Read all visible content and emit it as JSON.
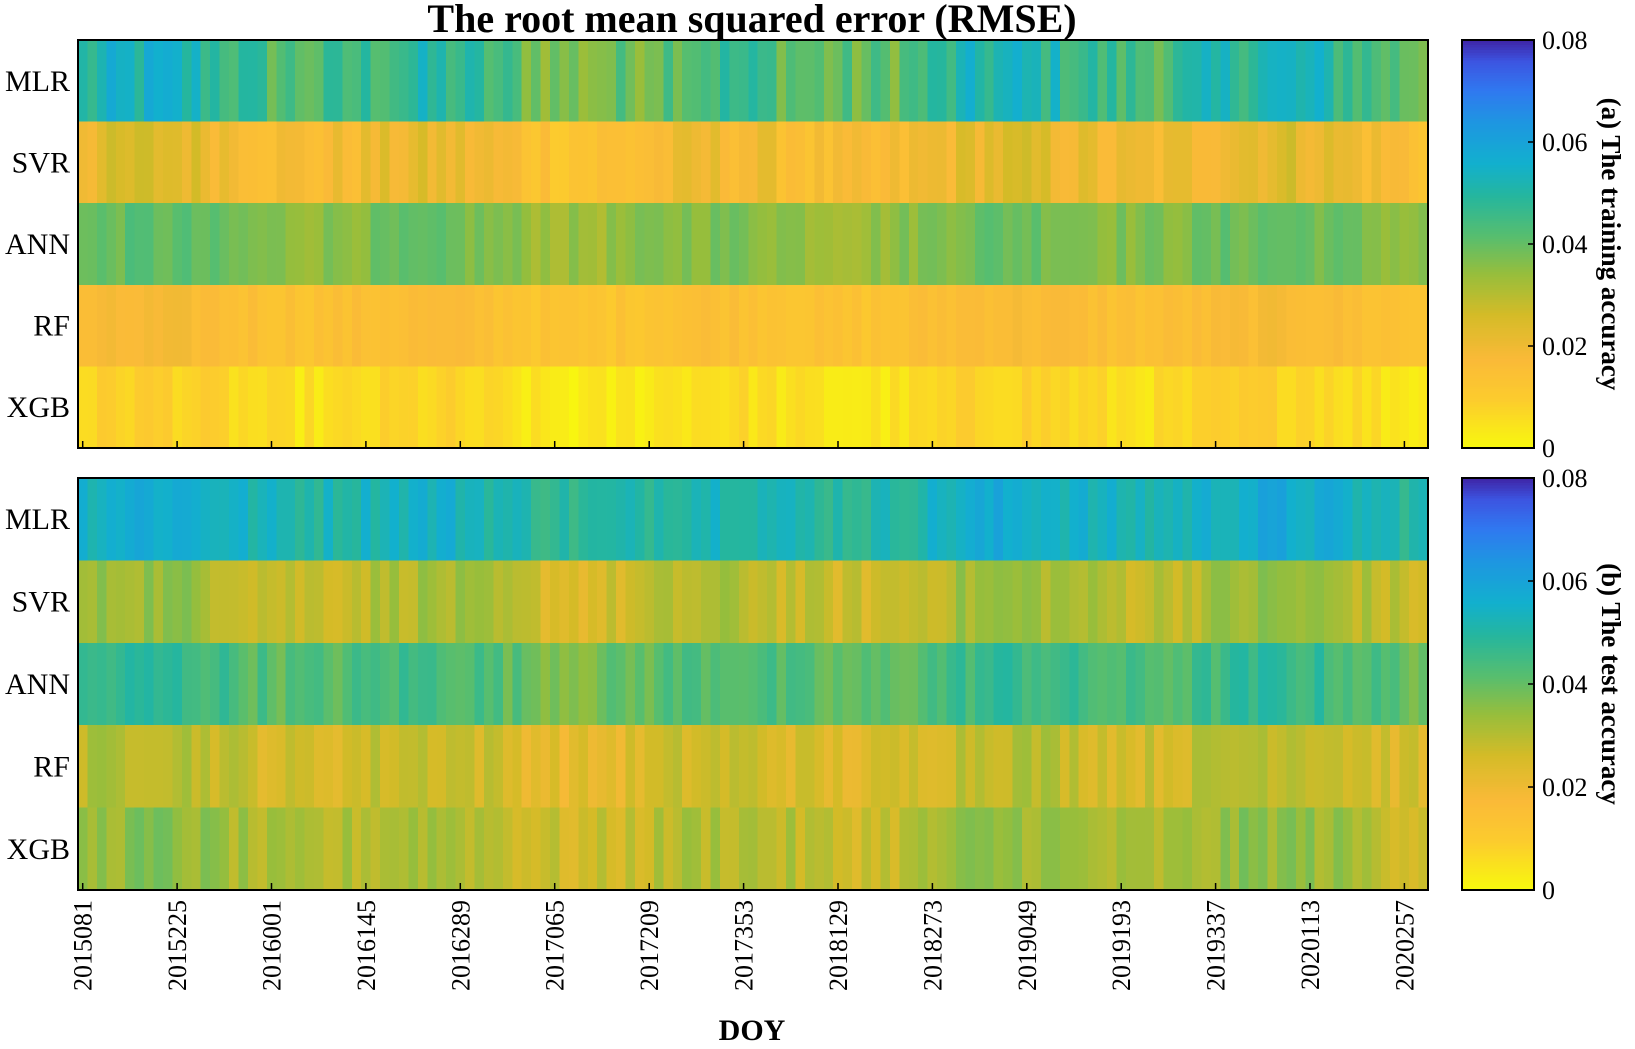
{
  "chart_data": {
    "type": "heatmap",
    "title": "The root mean squared error (RMSE)",
    "xlabel": "DOY",
    "rows": [
      "MLR",
      "SVR",
      "ANN",
      "RF",
      "XGB"
    ],
    "x_tick_labels": [
      "2015081",
      "2015225",
      "2016001",
      "2016145",
      "2016289",
      "2017065",
      "2017209",
      "2017353",
      "2018129",
      "2018273",
      "2019049",
      "2019193",
      "2019337",
      "2020113",
      "2020257"
    ],
    "n_columns": 143,
    "color_range": [
      0,
      0.08
    ],
    "colormap": "parula (reversed: yellow = 0, dark blue = 0.08)",
    "colorbar_ticks": [
      "0",
      "0.02",
      "0.04",
      "0.06",
      "0.08"
    ],
    "panels": [
      {
        "label": "(a) The training accuracy",
        "row_profiles": [
          {
            "name": "MLR",
            "mean": 0.045,
            "amp": 0.015,
            "min": 0.03,
            "max": 0.07
          },
          {
            "name": "SVR",
            "mean": 0.019,
            "amp": 0.01,
            "min": 0.004,
            "max": 0.032
          },
          {
            "name": "ANN",
            "mean": 0.037,
            "amp": 0.007,
            "min": 0.027,
            "max": 0.047
          },
          {
            "name": "RF",
            "mean": 0.015,
            "amp": 0.005,
            "min": 0.008,
            "max": 0.025
          },
          {
            "name": "XGB",
            "mean": 0.006,
            "amp": 0.006,
            "min": 0.001,
            "max": 0.022
          }
        ]
      },
      {
        "label": "(b) The test accuracy",
        "row_profiles": [
          {
            "name": "MLR",
            "mean": 0.053,
            "amp": 0.009,
            "min": 0.04,
            "max": 0.07
          },
          {
            "name": "SVR",
            "mean": 0.03,
            "amp": 0.009,
            "min": 0.016,
            "max": 0.046
          },
          {
            "name": "ANN",
            "mean": 0.043,
            "amp": 0.009,
            "min": 0.03,
            "max": 0.055
          },
          {
            "name": "RF",
            "mean": 0.027,
            "amp": 0.009,
            "min": 0.014,
            "max": 0.045
          },
          {
            "name": "XGB",
            "mean": 0.031,
            "amp": 0.009,
            "min": 0.015,
            "max": 0.045
          }
        ]
      }
    ]
  }
}
